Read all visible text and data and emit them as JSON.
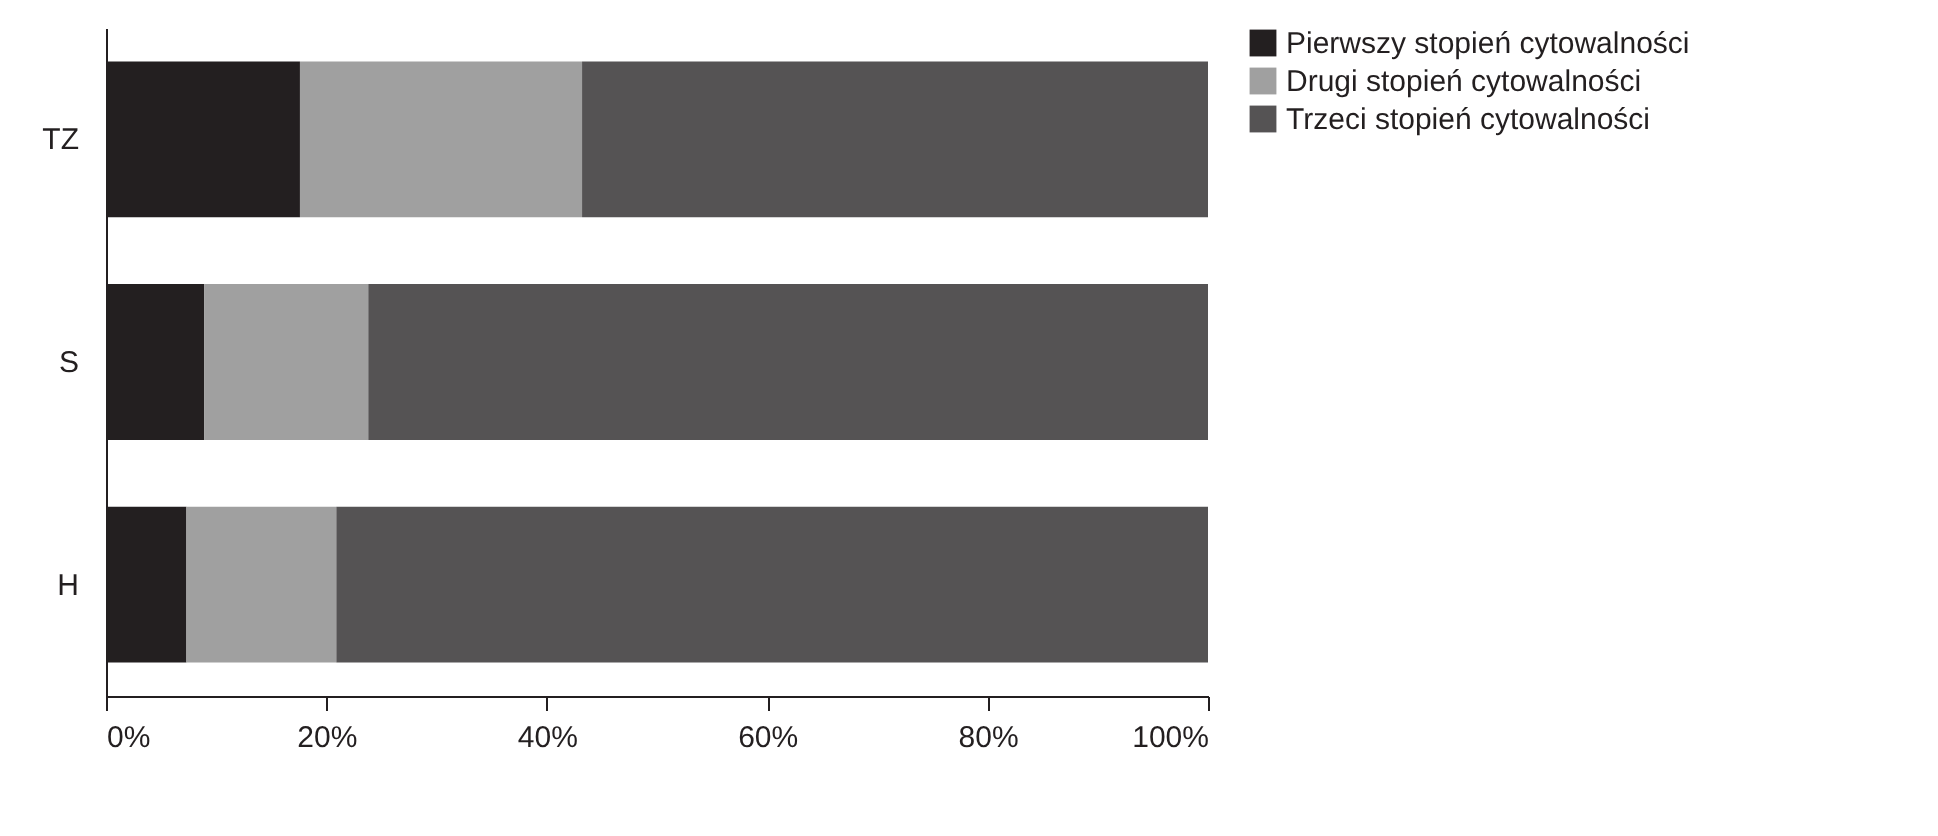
{
  "chart_data": {
    "type": "bar",
    "orientation": "horizontal",
    "stacked": true,
    "categories": [
      "TZ",
      "S",
      "H"
    ],
    "series": [
      {
        "name": "Pierwszy stopień cytowalności",
        "color": "#231f20",
        "values": [
          17.6,
          8.9,
          7.3
        ]
      },
      {
        "name": "Drugi stopień cytowalności",
        "color": "#a0a0a0",
        "values": [
          25.6,
          14.9,
          13.6
        ]
      },
      {
        "name": "Trzeci stopień cytowalności",
        "color": "#555354",
        "values": [
          56.8,
          76.2,
          79.1
        ]
      }
    ],
    "xlim": [
      0,
      100
    ],
    "xticks": [
      {
        "value": 0,
        "label": "0%"
      },
      {
        "value": 20,
        "label": "20%"
      },
      {
        "value": 40,
        "label": "40%"
      },
      {
        "value": 60,
        "label": "60%"
      },
      {
        "value": 80,
        "label": "80%"
      },
      {
        "value": 100,
        "label": "100%"
      }
    ],
    "grid": false,
    "legend": "right"
  }
}
